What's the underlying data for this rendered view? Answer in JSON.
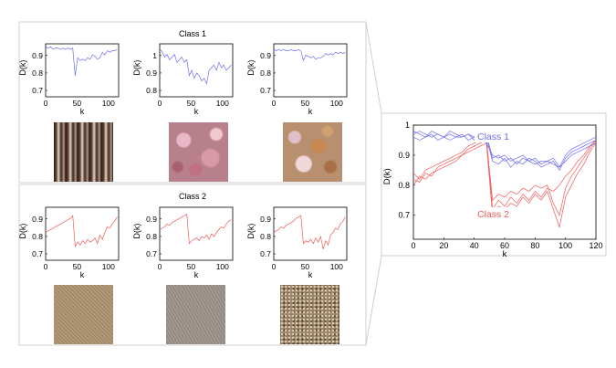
{
  "colors": {
    "class1": "#6e6ef0",
    "class2": "#f05a5a",
    "panel_border": "#cfcfcf",
    "axis": "#000000"
  },
  "panels": [
    {
      "title": "Class 1",
      "line_color": "#6e6ef0",
      "plots": [
        {
          "ylabel": "D(k)",
          "xlabel": "k",
          "yticks": [
            "0.9",
            "0.8",
            "0.7"
          ],
          "xticks": [
            "0",
            "50",
            "100"
          ],
          "ymin": 0.62,
          "ymax": 1.0,
          "series": [
            0.98,
            0.97,
            0.98,
            0.96,
            0.97,
            0.97,
            0.96,
            0.97,
            0.96,
            0.97,
            0.96,
            0.97,
            0.77,
            0.9,
            0.88,
            0.89,
            0.88,
            0.9,
            0.89,
            0.92,
            0.91,
            0.89,
            0.9,
            0.94,
            0.92,
            0.95,
            0.94,
            0.95,
            0.95,
            0.96
          ]
        },
        {
          "ylabel": "D(k)",
          "xlabel": "k",
          "yticks": [
            "1",
            "0.9",
            "0.8"
          ],
          "xticks": [
            "0",
            "50",
            "100"
          ],
          "ymin": 0.8,
          "ymax": 1.0,
          "series": [
            0.98,
            0.97,
            0.95,
            0.96,
            0.94,
            0.95,
            0.96,
            0.93,
            0.94,
            0.95,
            0.93,
            0.94,
            0.88,
            0.9,
            0.87,
            0.89,
            0.88,
            0.86,
            0.87,
            0.85,
            0.9,
            0.91,
            0.92,
            0.9,
            0.93,
            0.91,
            0.92,
            0.9,
            0.91,
            0.92
          ]
        },
        {
          "ylabel": "D(k)",
          "xlabel": "k",
          "yticks": [
            "0.9",
            "0.8",
            "0.7"
          ],
          "xticks": [
            "0",
            "50",
            "100"
          ],
          "ymin": 0.62,
          "ymax": 1.0,
          "series": [
            0.96,
            0.95,
            0.96,
            0.95,
            0.96,
            0.95,
            0.95,
            0.96,
            0.95,
            0.95,
            0.96,
            0.95,
            0.88,
            0.92,
            0.91,
            0.9,
            0.91,
            0.89,
            0.9,
            0.9,
            0.91,
            0.93,
            0.92,
            0.93,
            0.92,
            0.94,
            0.93,
            0.94,
            0.93,
            0.94
          ]
        }
      ],
      "textures": [
        "bark",
        "pink",
        "granite"
      ]
    },
    {
      "title": "Class 2",
      "line_color": "#f05a5a",
      "plots": [
        {
          "ylabel": "D(k)",
          "xlabel": "k",
          "yticks": [
            "0.9",
            "0.8",
            "0.7"
          ],
          "xticks": [
            "0",
            "50",
            "100"
          ],
          "ymin": 0.62,
          "ymax": 1.0,
          "series": [
            0.82,
            0.83,
            0.84,
            0.85,
            0.86,
            0.87,
            0.88,
            0.89,
            0.9,
            0.91,
            0.92,
            0.94,
            0.72,
            0.75,
            0.73,
            0.76,
            0.74,
            0.77,
            0.75,
            0.76,
            0.78,
            0.74,
            0.8,
            0.77,
            0.82,
            0.86,
            0.85,
            0.88,
            0.9,
            0.93
          ]
        },
        {
          "ylabel": "D(k)",
          "xlabel": "k",
          "yticks": [
            "0.9",
            "0.8",
            "0.7"
          ],
          "xticks": [
            "0",
            "50",
            "100"
          ],
          "ymin": 0.62,
          "ymax": 1.0,
          "series": [
            0.84,
            0.85,
            0.86,
            0.88,
            0.87,
            0.89,
            0.9,
            0.91,
            0.92,
            0.93,
            0.94,
            0.95,
            0.74,
            0.76,
            0.77,
            0.78,
            0.76,
            0.79,
            0.78,
            0.8,
            0.77,
            0.81,
            0.79,
            0.82,
            0.84,
            0.86,
            0.85,
            0.88,
            0.9,
            0.91
          ]
        },
        {
          "ylabel": "D(k)",
          "xlabel": "k",
          "yticks": [
            "0.9",
            "0.8",
            "0.7"
          ],
          "xticks": [
            "0",
            "50",
            "100"
          ],
          "ymin": 0.62,
          "ymax": 1.0,
          "series": [
            0.82,
            0.83,
            0.84,
            0.86,
            0.85,
            0.87,
            0.88,
            0.89,
            0.9,
            0.92,
            0.93,
            0.94,
            0.74,
            0.76,
            0.75,
            0.77,
            0.74,
            0.78,
            0.75,
            0.79,
            0.7,
            0.76,
            0.73,
            0.8,
            0.82,
            0.85,
            0.84,
            0.88,
            0.9,
            0.93
          ]
        }
      ],
      "textures": [
        "sand1",
        "sand2",
        "gravel"
      ]
    }
  ],
  "combined": {
    "ylabel": "D(k)",
    "xlabel": "k",
    "yticks": [
      "1",
      "0.9",
      "0.8",
      "0.7"
    ],
    "ytick_values": [
      1.0,
      0.9,
      0.8,
      0.7
    ],
    "xticks": [
      "0",
      "20",
      "40",
      "60",
      "80",
      "100",
      "120"
    ],
    "xtick_values": [
      0,
      20,
      40,
      60,
      80,
      100,
      120
    ],
    "xlim": [
      0,
      120
    ],
    "ylim": [
      0.62,
      1.0
    ],
    "class1_label": "Class 1",
    "class2_label": "Class 2",
    "class1_series": [
      [
        0.97,
        0.98,
        0.97,
        0.96,
        0.97,
        0.96,
        0.98,
        0.97,
        0.96,
        0.97,
        0.96,
        0.97,
        0.97,
        0.89,
        0.9,
        0.88,
        0.89,
        0.87,
        0.89,
        0.88,
        0.87,
        0.88,
        0.88,
        0.87,
        0.86,
        0.9,
        0.92,
        0.93,
        0.94,
        0.95,
        0.96
      ],
      [
        0.96,
        0.95,
        0.96,
        0.97,
        0.95,
        0.96,
        0.95,
        0.96,
        0.97,
        0.95,
        0.96,
        0.95,
        0.96,
        0.88,
        0.87,
        0.89,
        0.86,
        0.88,
        0.87,
        0.89,
        0.88,
        0.86,
        0.87,
        0.88,
        0.85,
        0.89,
        0.91,
        0.92,
        0.93,
        0.94,
        0.95
      ],
      [
        0.98,
        0.97,
        0.96,
        0.98,
        0.97,
        0.96,
        0.97,
        0.96,
        0.96,
        0.97,
        0.95,
        0.96,
        0.94,
        0.9,
        0.89,
        0.9,
        0.88,
        0.89,
        0.9,
        0.88,
        0.89,
        0.87,
        0.88,
        0.89,
        0.86,
        0.88,
        0.9,
        0.91,
        0.92,
        0.93,
        0.94
      ]
    ],
    "class2_series": [
      [
        0.84,
        0.82,
        0.85,
        0.86,
        0.87,
        0.88,
        0.89,
        0.9,
        0.91,
        0.93,
        0.94,
        0.95,
        0.96,
        0.72,
        0.75,
        0.73,
        0.76,
        0.74,
        0.77,
        0.75,
        0.78,
        0.76,
        0.79,
        0.78,
        0.8,
        0.83,
        0.85,
        0.88,
        0.9,
        0.93,
        0.95
      ],
      [
        0.8,
        0.83,
        0.82,
        0.84,
        0.85,
        0.86,
        0.87,
        0.88,
        0.9,
        0.91,
        0.92,
        0.93,
        0.94,
        0.7,
        0.73,
        0.72,
        0.74,
        0.73,
        0.76,
        0.74,
        0.77,
        0.75,
        0.78,
        0.72,
        0.66,
        0.76,
        0.8,
        0.84,
        0.87,
        0.91,
        0.94
      ],
      [
        0.82,
        0.81,
        0.84,
        0.83,
        0.86,
        0.87,
        0.88,
        0.89,
        0.9,
        0.92,
        0.93,
        0.94,
        0.95,
        0.75,
        0.77,
        0.76,
        0.78,
        0.77,
        0.79,
        0.78,
        0.8,
        0.79,
        0.8,
        0.74,
        0.7,
        0.79,
        0.83,
        0.86,
        0.89,
        0.92,
        0.95
      ]
    ]
  }
}
